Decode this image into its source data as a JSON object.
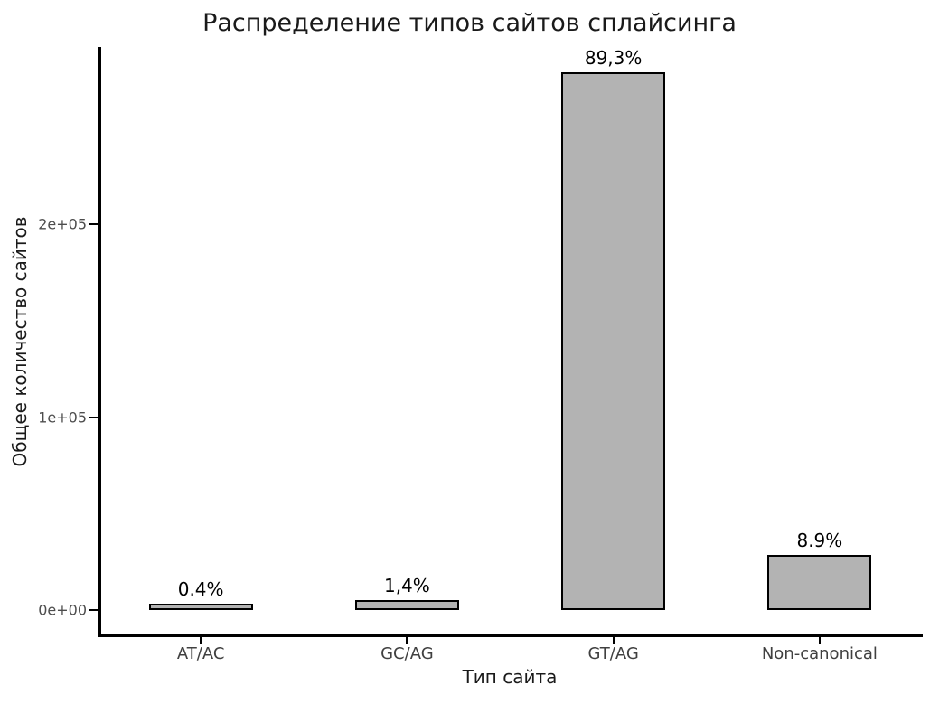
{
  "chart_data": {
    "type": "bar",
    "title": "Распределение типов сайтов сплайсинга",
    "xlabel": "Тип сайта",
    "ylabel": "Общее количество сайтов",
    "categories": [
      "AT/AC",
      "GC/AG",
      "GT/AG",
      "Non-canonical"
    ],
    "values": [
      1250,
      4350,
      278000,
      27700
    ],
    "bar_labels": [
      "0.4%",
      "1,4%",
      "89,3%",
      "8.9%"
    ],
    "y_ticks": [
      {
        "value": 0,
        "label": "0e+00"
      },
      {
        "value": 100000,
        "label": "1e+05"
      },
      {
        "value": 200000,
        "label": "2e+05"
      }
    ],
    "ylim": [
      0,
      278000
    ],
    "axis_expansion": 0.05,
    "grid": false,
    "legend": "none",
    "colors": {
      "bar_fill": "#b3b3b3",
      "bar_border": "#000000",
      "axis_line": "#000000",
      "tick_text": "#4d4d4d",
      "title_text": "#1a1a1a",
      "background": "#ffffff"
    }
  }
}
